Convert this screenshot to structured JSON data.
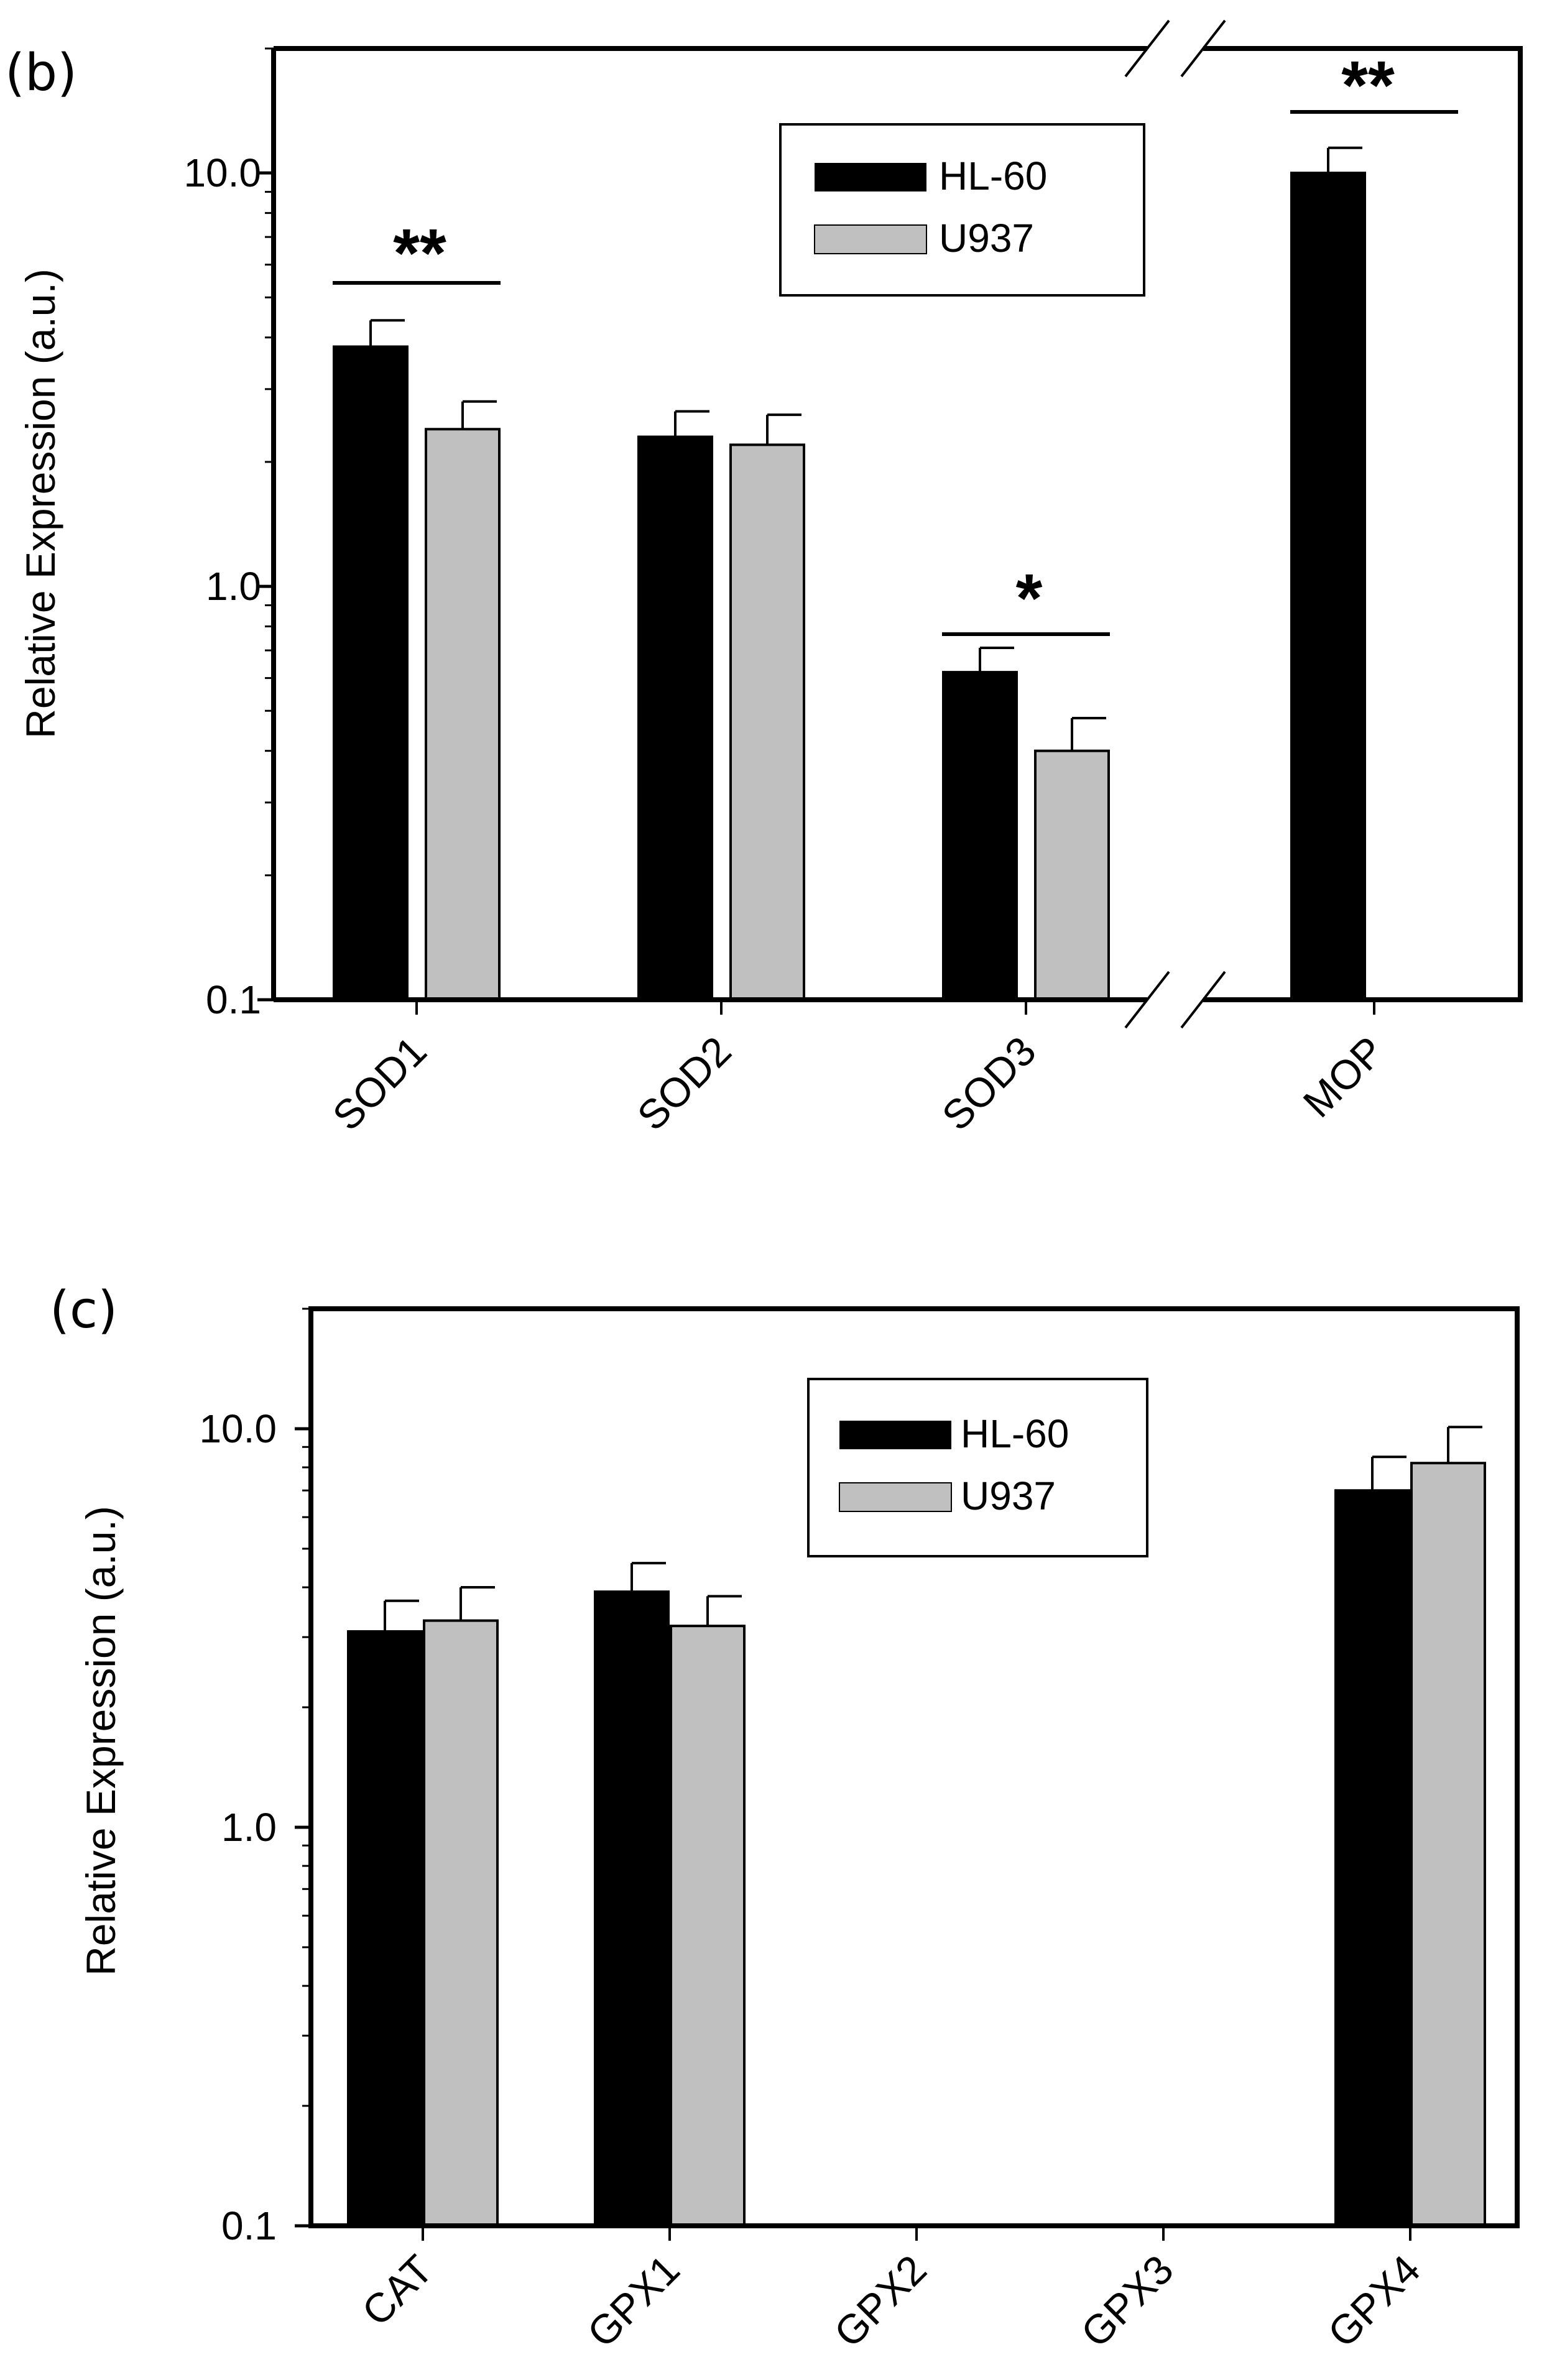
{
  "colors": {
    "hl60": "#000000",
    "u937": "#c0c0c0",
    "axis": "#000000",
    "background": "#ffffff"
  },
  "chart_data": [
    {
      "type": "bar",
      "panel_label": "(b)",
      "ylabel": "Relative Expression (a.u.)",
      "xlabel": "",
      "yscale": "log",
      "ylim": [
        0.1,
        20
      ],
      "yticks": [
        0.1,
        1.0,
        10.0
      ],
      "ytick_labels": [
        "0.1",
        "1.0",
        "10.0"
      ],
      "categories": [
        "SOD1",
        "SOD2",
        "SOD3",
        "MOP"
      ],
      "axis_break_after_category": 2,
      "legend": {
        "position": "top-center",
        "entries": [
          "HL-60",
          "U937"
        ]
      },
      "series": [
        {
          "name": "HL-60",
          "values": [
            3.8,
            2.3,
            0.62,
            10.0
          ],
          "errors": [
            0.6,
            0.35,
            0.09,
            1.5
          ]
        },
        {
          "name": "U937",
          "values": [
            2.4,
            2.2,
            0.4,
            null
          ],
          "errors": [
            0.4,
            0.4,
            0.08,
            null
          ]
        }
      ],
      "significance": [
        {
          "category": "SOD1",
          "label": "**"
        },
        {
          "category": "SOD3",
          "label": "*"
        },
        {
          "category": "MOP",
          "label": "**"
        }
      ]
    },
    {
      "type": "bar",
      "panel_label": "(c)",
      "ylabel": "Relative Expression (a.u.)",
      "xlabel": "",
      "yscale": "log",
      "ylim": [
        0.1,
        20
      ],
      "yticks": [
        0.1,
        1.0,
        10.0
      ],
      "ytick_labels": [
        "0.1",
        "1.0",
        "10.0"
      ],
      "categories": [
        "CAT",
        "GPX1",
        "GPX2",
        "GPX3",
        "GPX4"
      ],
      "legend": {
        "position": "top-center",
        "entries": [
          "HL-60",
          "U937"
        ]
      },
      "series": [
        {
          "name": "HL-60",
          "values": [
            3.1,
            3.9,
            null,
            null,
            7.0
          ],
          "errors": [
            0.6,
            0.7,
            null,
            null,
            1.5
          ]
        },
        {
          "name": "U937",
          "values": [
            3.3,
            3.2,
            null,
            null,
            8.2
          ],
          "errors": [
            0.7,
            0.6,
            null,
            null,
            1.9
          ]
        }
      ],
      "significance": []
    }
  ]
}
